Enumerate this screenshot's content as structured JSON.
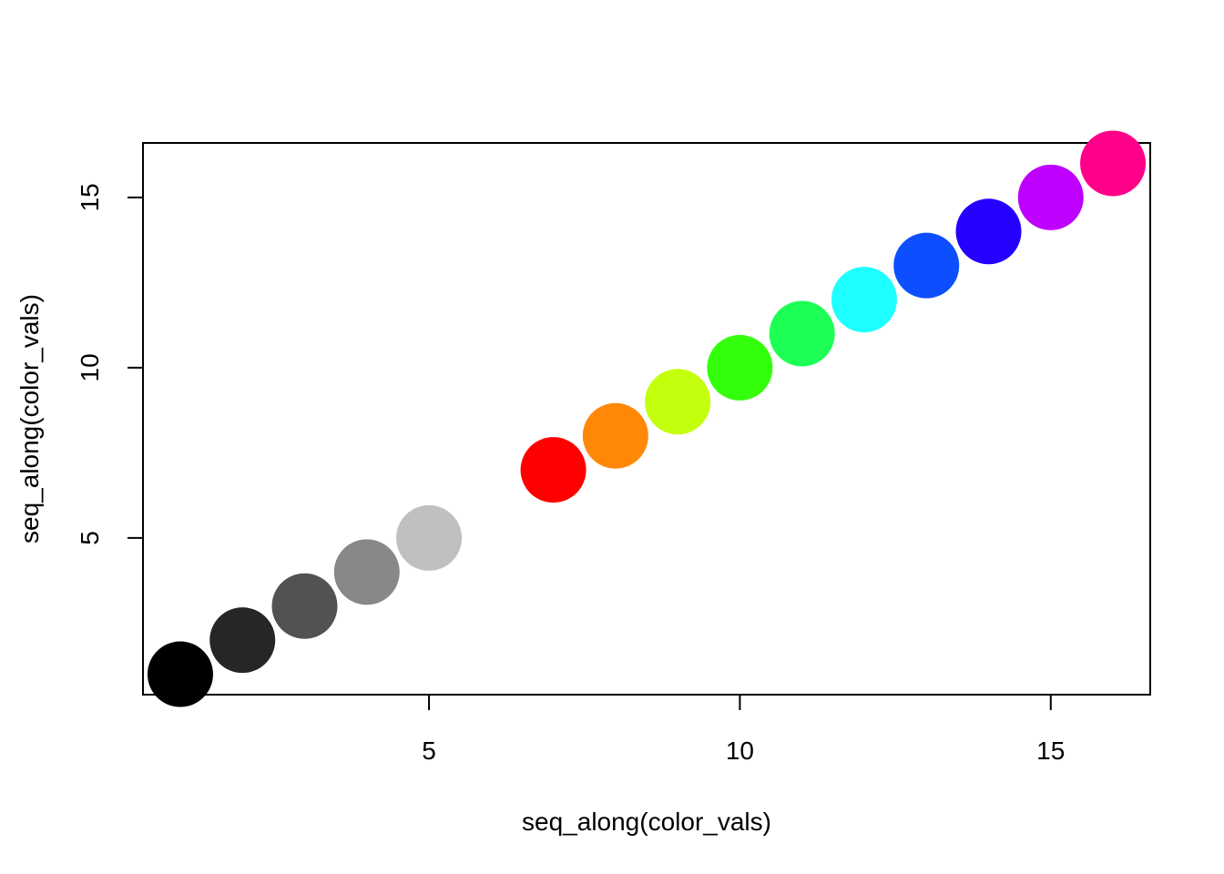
{
  "chart_data": {
    "type": "scatter",
    "title": "",
    "xlabel": "seq_along(color_vals)",
    "ylabel": "seq_along(color_vals)",
    "xlim": [
      0.4,
      16.6
    ],
    "ylim": [
      0.4,
      16.6
    ],
    "xticks": [
      5,
      10,
      15
    ],
    "yticks": [
      5,
      10,
      15
    ],
    "grid": false,
    "legend": "none",
    "points": [
      {
        "x": 1,
        "y": 1,
        "color": "#000000"
      },
      {
        "x": 2,
        "y": 2,
        "color": "#262626"
      },
      {
        "x": 3,
        "y": 3,
        "color": "#525252"
      },
      {
        "x": 4,
        "y": 4,
        "color": "#888888"
      },
      {
        "x": 5,
        "y": 5,
        "color": "#C0C0C0"
      },
      {
        "x": 6,
        "y": 6,
        "color": "#FFFFFF"
      },
      {
        "x": 7,
        "y": 7,
        "color": "#FF0000"
      },
      {
        "x": 8,
        "y": 8,
        "color": "#FF8808"
      },
      {
        "x": 9,
        "y": 9,
        "color": "#C4FF0D"
      },
      {
        "x": 10,
        "y": 10,
        "color": "#33FF0D"
      },
      {
        "x": 11,
        "y": 11,
        "color": "#1EFF56"
      },
      {
        "x": 12,
        "y": 12,
        "color": "#1EFFFF"
      },
      {
        "x": 13,
        "y": 13,
        "color": "#0D4FFF"
      },
      {
        "x": 14,
        "y": 14,
        "color": "#2400FF"
      },
      {
        "x": 15,
        "y": 15,
        "color": "#BE00FF"
      },
      {
        "x": 16,
        "y": 16,
        "color": "#FF0088"
      }
    ]
  }
}
